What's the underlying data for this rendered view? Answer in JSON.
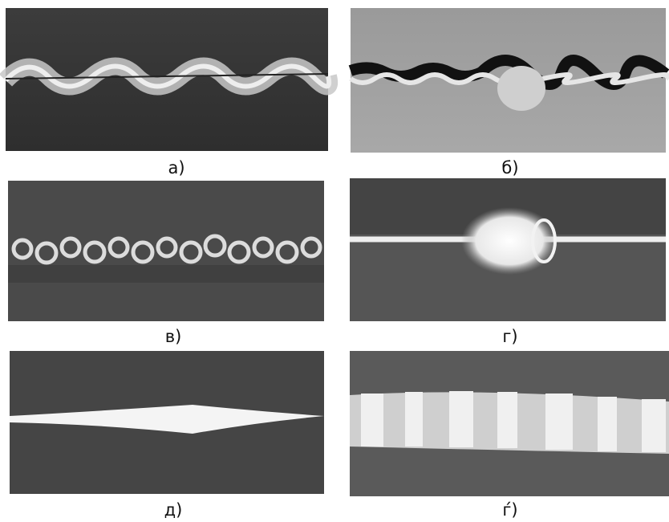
{
  "panels": [
    {
      "label": "а)"
    },
    {
      "label": "б)"
    },
    {
      "label": "в)"
    },
    {
      "label": "г)"
    },
    {
      "label": "д)"
    },
    {
      "label": "ѓ)"
    }
  ]
}
